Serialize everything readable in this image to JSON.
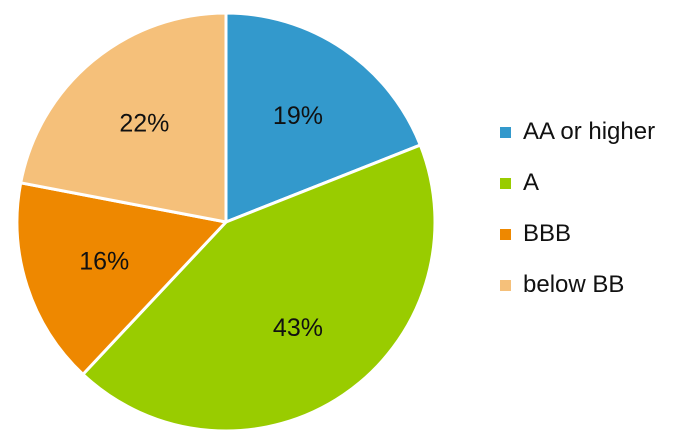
{
  "chart_data": {
    "type": "pie",
    "categories": [
      "AA or higher",
      "A",
      "BBB",
      "below BB"
    ],
    "values": [
      19,
      43,
      16,
      22
    ],
    "value_labels": [
      "19%",
      "43%",
      "16%",
      "22%"
    ],
    "colors": [
      "#3399CC",
      "#99CC00",
      "#EE8800",
      "#F5C07A"
    ],
    "title": "",
    "legend_position": "right",
    "start_angle": "12 o'clock",
    "direction": "clockwise"
  }
}
